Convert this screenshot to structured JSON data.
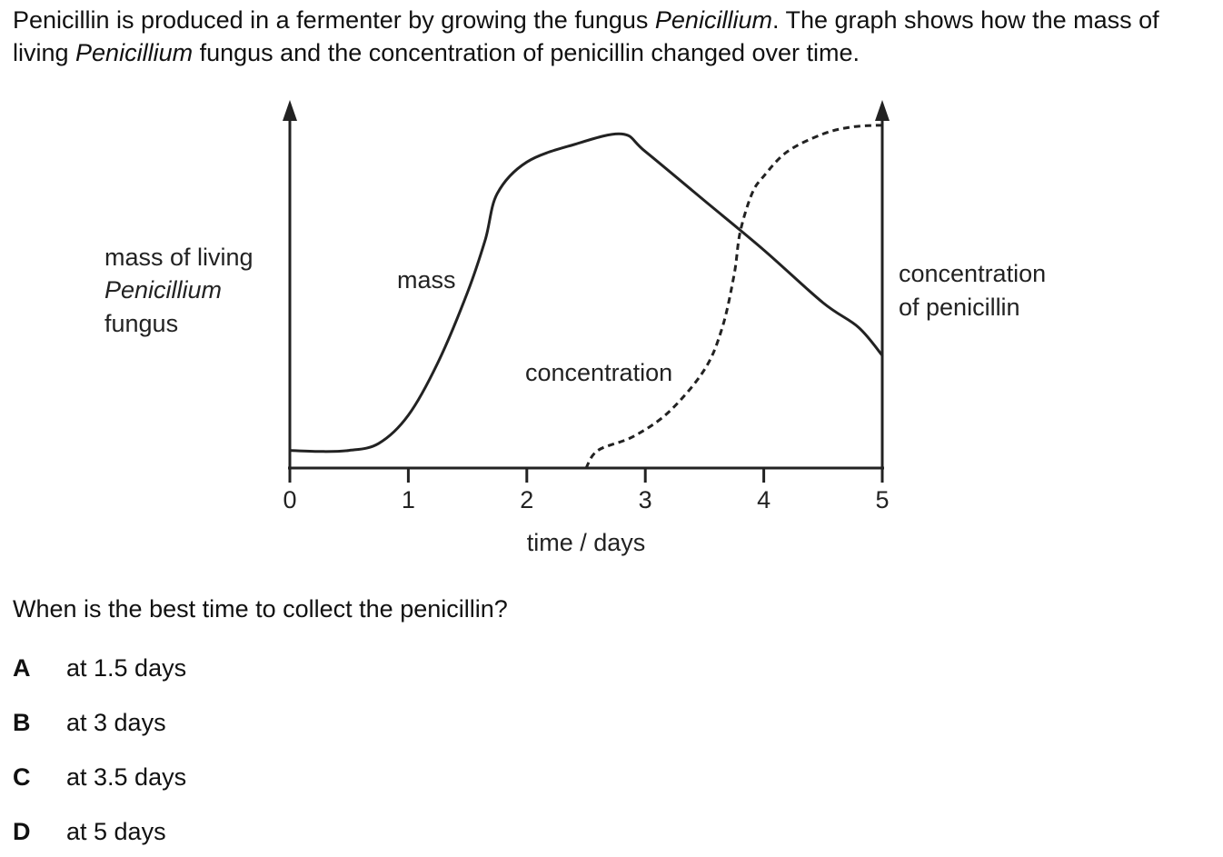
{
  "intro": {
    "part1": "Penicillin is produced in a fermenter by growing the fungus ",
    "italic1": "Penicillium",
    "part2": ". The graph shows how the mass of living ",
    "italic2": "Penicillium",
    "part3": " fungus and the concentration of penicillin changed over time."
  },
  "question": "When is the best time to collect the penicillin?",
  "options": [
    {
      "letter": "A",
      "text": "at 1.5 days"
    },
    {
      "letter": "B",
      "text": "at 3 days"
    },
    {
      "letter": "C",
      "text": "at 3.5 days"
    },
    {
      "letter": "D",
      "text": "at 5 days"
    }
  ],
  "chart_data": {
    "type": "line",
    "xlabel": "time / days",
    "xlim": [
      0,
      5
    ],
    "x_ticks": [
      "0",
      "1",
      "2",
      "3",
      "4",
      "5"
    ],
    "y_left_label": [
      "mass of living",
      "Penicillium",
      "fungus"
    ],
    "y_right_label": [
      "concentration",
      "of penicillin"
    ],
    "y_units": "relative (no scale shown)",
    "ylim": [
      0,
      100
    ],
    "series": [
      {
        "name": "mass",
        "style": "solid",
        "x": [
          0,
          0.25,
          0.5,
          0.75,
          1.0,
          1.25,
          1.5,
          1.65,
          1.75,
          2.0,
          2.4,
          2.8,
          3.0,
          3.5,
          4.0,
          4.5,
          4.8,
          5.0
        ],
        "y": [
          5,
          4.7,
          5,
          7,
          15,
          30,
          50,
          65,
          78,
          87,
          92,
          95,
          90,
          76,
          62,
          47,
          40,
          32
        ]
      },
      {
        "name": "concentration",
        "style": "dashed",
        "x": [
          2.5,
          2.6,
          2.9,
          3.2,
          3.5,
          3.65,
          3.75,
          3.8,
          3.9,
          4.0,
          4.2,
          4.5,
          4.75,
          5.0
        ],
        "y": [
          0,
          5,
          9,
          16,
          28,
          40,
          55,
          67,
          78,
          83,
          90,
          95,
          97,
          97.5
        ]
      }
    ],
    "series_labels": [
      "mass",
      "concentration"
    ]
  }
}
